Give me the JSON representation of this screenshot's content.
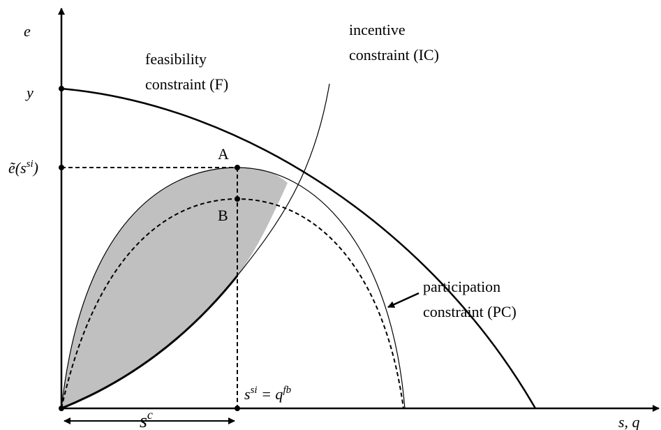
{
  "axes": {
    "y_label": "e",
    "x_label": "s, q"
  },
  "points": {
    "y": "y",
    "e_tilde": {
      "base": "ẽ(s",
      "sup": "si",
      "tail": ")"
    },
    "A": "A",
    "B": "B"
  },
  "curves": {
    "feasibility": [
      "feasibility",
      "constraint (F)"
    ],
    "incentive": [
      "incentive",
      "constraint (IC)"
    ],
    "participation": [
      "participation",
      "constraint (PC)"
    ]
  },
  "annotations": {
    "s_si": {
      "base": "s",
      "sup": "si",
      "mid": " = q",
      "sup2": "fb"
    },
    "s_c": {
      "base": "s",
      "sup": "c"
    }
  }
}
